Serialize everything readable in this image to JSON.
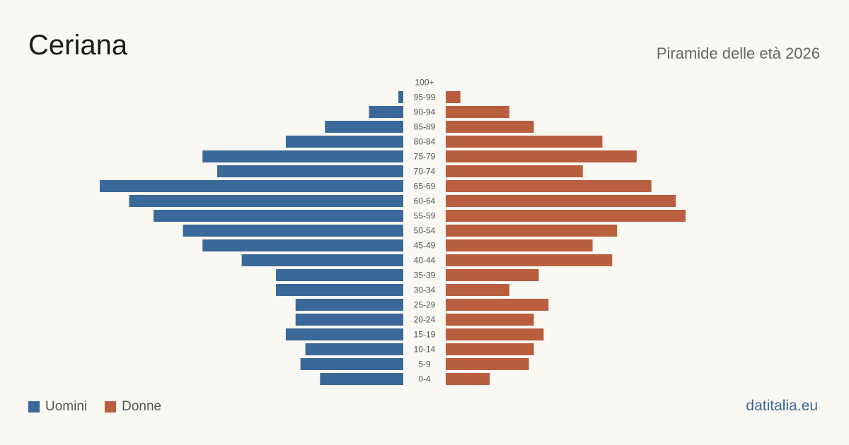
{
  "title": "Ceriana",
  "subtitle": "Piramide delle età 2026",
  "brand": "datitalia.eu",
  "colors": {
    "men": "#3a6898",
    "women": "#b95e3e",
    "background": "#faf8f3"
  },
  "legend": [
    {
      "label": "Uomini",
      "color": "#3a6898"
    },
    {
      "label": "Donne",
      "color": "#b95e3e"
    }
  ],
  "chart_data": {
    "type": "bar",
    "orientation": "horizontal-pyramid",
    "categories": [
      "100+",
      "95-99",
      "90-94",
      "85-89",
      "80-84",
      "75-79",
      "70-74",
      "65-69",
      "60-64",
      "55-59",
      "50-54",
      "45-49",
      "40-44",
      "35-39",
      "30-34",
      "25-29",
      "20-24",
      "15-19",
      "10-14",
      "5-9",
      "0-4"
    ],
    "series": [
      {
        "name": "Uomini",
        "values": [
          0,
          1,
          7,
          16,
          24,
          41,
          38,
          62,
          56,
          51,
          45,
          41,
          33,
          26,
          26,
          22,
          22,
          24,
          20,
          21,
          17
        ]
      },
      {
        "name": "Donne",
        "values": [
          0,
          3,
          13,
          18,
          32,
          39,
          28,
          42,
          47,
          49,
          35,
          30,
          34,
          19,
          13,
          21,
          18,
          20,
          18,
          17,
          9
        ]
      }
    ],
    "legend_position": "bottom-left",
    "grid": false
  }
}
